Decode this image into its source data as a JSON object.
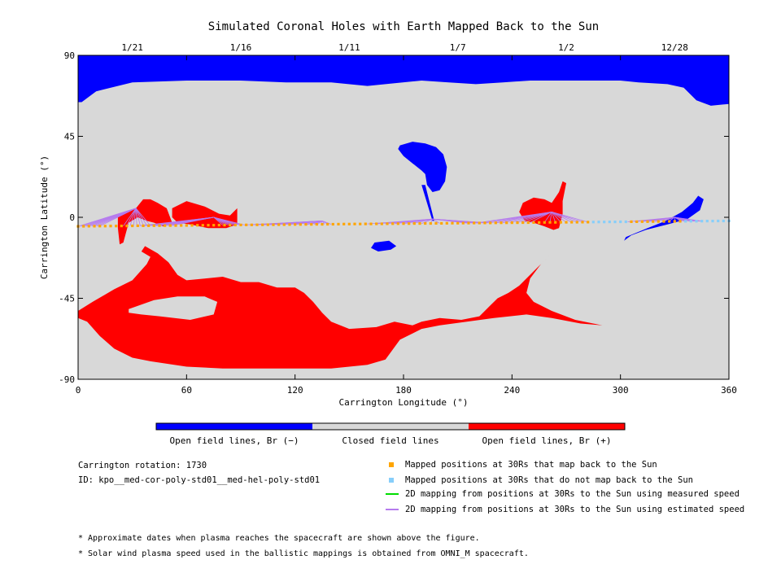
{
  "chart_data": {
    "type": "map",
    "title": "Simulated Coronal Holes with Earth Mapped Back to the Sun",
    "xlabel": "Carrington Longitude (°)",
    "ylabel": "Carrington Latitude (°)",
    "xlim": [
      0,
      360
    ],
    "ylim": [
      -90,
      90
    ],
    "x_ticks": [
      "0",
      "60",
      "120",
      "180",
      "240",
      "300",
      "360"
    ],
    "y_ticks": [
      "90",
      "45",
      "0",
      "-45",
      "-90"
    ],
    "top_axis_dates": [
      {
        "label": "1/21",
        "lon": 30
      },
      {
        "label": "1/16",
        "lon": 90
      },
      {
        "label": "1/11",
        "lon": 150
      },
      {
        "label": "1/7",
        "lon": 210
      },
      {
        "label": "1/2",
        "lon": 270
      },
      {
        "label": "12/28",
        "lon": 330
      }
    ],
    "colors": {
      "open_negative": "#0000ff",
      "closed": "#d8d8d8",
      "open_positive": "#ff0000",
      "mapped_back": "#ffa500",
      "not_mapped_back": "#87cefa",
      "measured_speed": "#00dd00",
      "estimated_speed": "#b57bee"
    },
    "regions": {
      "north_polar_negative": [
        [
          0,
          90
        ],
        [
          360,
          90
        ],
        [
          360,
          63
        ],
        [
          350,
          62
        ],
        [
          342,
          65
        ],
        [
          335,
          72
        ],
        [
          326,
          74
        ],
        [
          310,
          75
        ],
        [
          300,
          76
        ],
        [
          280,
          76
        ],
        [
          265,
          76
        ],
        [
          250,
          76
        ],
        [
          235,
          75
        ],
        [
          220,
          74
        ],
        [
          205,
          75
        ],
        [
          190,
          76
        ],
        [
          170,
          74
        ],
        [
          160,
          73
        ],
        [
          140,
          75
        ],
        [
          115,
          75
        ],
        [
          90,
          76
        ],
        [
          60,
          76
        ],
        [
          30,
          75
        ],
        [
          10,
          70
        ],
        [
          2,
          64
        ],
        [
          0,
          64
        ]
      ],
      "negative_hole_center": [
        [
          178,
          40
        ],
        [
          185,
          42
        ],
        [
          192,
          41
        ],
        [
          198,
          39
        ],
        [
          202,
          35
        ],
        [
          204,
          28
        ],
        [
          203,
          20
        ],
        [
          200,
          15
        ],
        [
          196,
          14
        ],
        [
          193,
          18
        ],
        [
          192,
          24
        ],
        [
          190,
          26
        ],
        [
          185,
          30
        ],
        [
          180,
          34
        ],
        [
          177,
          38
        ]
      ],
      "negative_hole_center_tail": [
        [
          192,
          18
        ],
        [
          197,
          -2
        ],
        [
          196,
          -2
        ],
        [
          190,
          18
        ]
      ],
      "negative_hole_small": [
        [
          164,
          -14
        ],
        [
          172,
          -13
        ],
        [
          176,
          -16
        ],
        [
          173,
          -18
        ],
        [
          166,
          -19
        ],
        [
          162,
          -17
        ]
      ],
      "negative_hole_right": [
        [
          303,
          -11
        ],
        [
          315,
          -6
        ],
        [
          325,
          -2
        ],
        [
          334,
          3
        ],
        [
          340,
          8
        ],
        [
          343,
          12
        ],
        [
          346,
          10
        ],
        [
          344,
          4
        ],
        [
          337,
          -1
        ],
        [
          326,
          -4
        ],
        [
          314,
          -7
        ],
        [
          306,
          -10
        ],
        [
          302,
          -13
        ]
      ],
      "positive_south": [
        [
          0,
          -52
        ],
        [
          8,
          -47
        ],
        [
          20,
          -40
        ],
        [
          30,
          -35
        ],
        [
          38,
          -26
        ],
        [
          40,
          -22
        ],
        [
          35,
          -19
        ],
        [
          37,
          -16
        ],
        [
          44,
          -20
        ],
        [
          50,
          -25
        ],
        [
          55,
          -32
        ],
        [
          60,
          -35
        ],
        [
          70,
          -34
        ],
        [
          80,
          -33
        ],
        [
          90,
          -36
        ],
        [
          100,
          -36
        ],
        [
          110,
          -39
        ],
        [
          120,
          -39
        ],
        [
          125,
          -42
        ],
        [
          130,
          -47
        ],
        [
          135,
          -53
        ],
        [
          140,
          -58
        ],
        [
          150,
          -62
        ],
        [
          165,
          -61
        ],
        [
          175,
          -58
        ],
        [
          185,
          -60
        ],
        [
          190,
          -58
        ],
        [
          200,
          -56
        ],
        [
          212,
          -57
        ],
        [
          222,
          -55
        ],
        [
          228,
          -49
        ],
        [
          232,
          -45
        ],
        [
          238,
          -42
        ],
        [
          244,
          -38
        ],
        [
          252,
          -30
        ],
        [
          258,
          -24
        ],
        [
          262,
          -20
        ],
        [
          256,
          -26
        ],
        [
          250,
          -34
        ],
        [
          248,
          -42
        ],
        [
          252,
          -47
        ],
        [
          262,
          -52
        ],
        [
          275,
          -57
        ],
        [
          290,
          -60
        ],
        [
          278,
          -59
        ],
        [
          262,
          -56
        ],
        [
          248,
          -54
        ],
        [
          230,
          -56
        ],
        [
          215,
          -58
        ],
        [
          200,
          -60
        ],
        [
          190,
          -62
        ],
        [
          178,
          -68
        ],
        [
          170,
          -79
        ],
        [
          160,
          -82
        ],
        [
          140,
          -84
        ],
        [
          120,
          -84
        ],
        [
          100,
          -84
        ],
        [
          80,
          -84
        ],
        [
          60,
          -83
        ],
        [
          40,
          -80
        ],
        [
          30,
          -78
        ],
        [
          20,
          -73
        ],
        [
          12,
          -66
        ],
        [
          5,
          -58
        ],
        [
          0,
          -56
        ]
      ],
      "positive_south_hole": [
        [
          28,
          -51
        ],
        [
          42,
          -46
        ],
        [
          55,
          -44
        ],
        [
          70,
          -44
        ],
        [
          77,
          -47
        ],
        [
          75,
          -54
        ],
        [
          62,
          -57
        ],
        [
          45,
          -55
        ],
        [
          35,
          -54
        ],
        [
          28,
          -53
        ]
      ],
      "positive_left": [
        [
          22,
          2
        ],
        [
          27,
          3
        ],
        [
          32,
          5
        ],
        [
          36,
          10
        ],
        [
          40,
          10
        ],
        [
          44,
          8
        ],
        [
          49,
          5
        ],
        [
          52,
          -3
        ],
        [
          47,
          -5
        ],
        [
          42,
          -3
        ],
        [
          38,
          -2
        ],
        [
          33,
          0
        ],
        [
          28,
          -3
        ],
        [
          25,
          -14
        ],
        [
          23,
          -15
        ],
        [
          22,
          -6
        ]
      ],
      "positive_left2": [
        [
          52,
          5
        ],
        [
          60,
          9
        ],
        [
          70,
          6
        ],
        [
          78,
          2
        ],
        [
          84,
          1
        ],
        [
          88,
          5
        ],
        [
          88,
          -4
        ],
        [
          82,
          -6
        ],
        [
          72,
          -6
        ],
        [
          62,
          -4
        ],
        [
          55,
          -3
        ],
        [
          52,
          0
        ]
      ],
      "positive_mid": [
        [
          246,
          8
        ],
        [
          252,
          11
        ],
        [
          258,
          10
        ],
        [
          262,
          8
        ],
        [
          266,
          14
        ],
        [
          268,
          20
        ],
        [
          270,
          19
        ],
        [
          268,
          9
        ],
        [
          268,
          2
        ],
        [
          266,
          -6
        ],
        [
          263,
          -7
        ],
        [
          258,
          -5
        ],
        [
          252,
          -3
        ],
        [
          247,
          -2
        ],
        [
          244,
          3
        ]
      ]
    },
    "mapping": {
      "mapped_back_lon_ranges": [
        [
          0,
          282
        ],
        [
          304,
          334
        ]
      ],
      "not_mapped_back_lon_ranges": [
        [
          282,
          304
        ],
        [
          334,
          360
        ]
      ],
      "trajectory_lat_at_0": -5,
      "trajectory_lat_at_360": -2,
      "estimated_speed_line_groups": [
        {
          "from": [
            0,
            12
          ],
          "to": [
            25,
            40
          ],
          "foot": [
            32,
            5
          ]
        },
        {
          "from": [
            34,
            52
          ],
          "to": [
            80,
            92
          ],
          "foot": [
            75,
            0
          ]
        },
        {
          "from": [
            92,
            120
          ],
          "to": [
            125,
            140
          ],
          "foot": [
            135,
            -2
          ]
        },
        {
          "from": [
            160,
            200
          ],
          "to": [
            215,
            228
          ],
          "foot": [
            196,
            -1
          ]
        },
        {
          "from": [
            220,
            250
          ],
          "to": [
            258,
            282
          ],
          "foot": [
            262,
            3
          ]
        },
        {
          "from": [
            304,
            334
          ],
          "to": [
            334,
            345
          ],
          "foot": [
            330,
            0
          ]
        }
      ]
    },
    "colorbar_labels": [
      "Open field lines, Br (−)",
      "Closed field lines",
      "Open field lines, Br (+)"
    ]
  },
  "info": {
    "rotation": "Carrington rotation: 1730",
    "id": "ID: kpo__med-cor-poly-std01__med-hel-poly-std01"
  },
  "legend": [
    {
      "label": "Mapped positions at 30Rs that map back to the Sun",
      "kind": "square",
      "color": "#ffa500"
    },
    {
      "label": "Mapped positions at 30Rs that do not map back to the Sun",
      "kind": "square",
      "color": "#87cefa"
    },
    {
      "label": "2D mapping from positions at 30Rs to the Sun using measured speed",
      "kind": "line",
      "color": "#00dd00"
    },
    {
      "label": "2D mapping from positions at 30Rs to the Sun using estimated speed",
      "kind": "line",
      "color": "#b57bee"
    }
  ],
  "notes": [
    "* Approximate dates when plasma reaches the spacecraft are shown above the figure.",
    "* Solar wind plasma speed used in the ballistic mappings is obtained from OMNI_M spacecraft."
  ]
}
